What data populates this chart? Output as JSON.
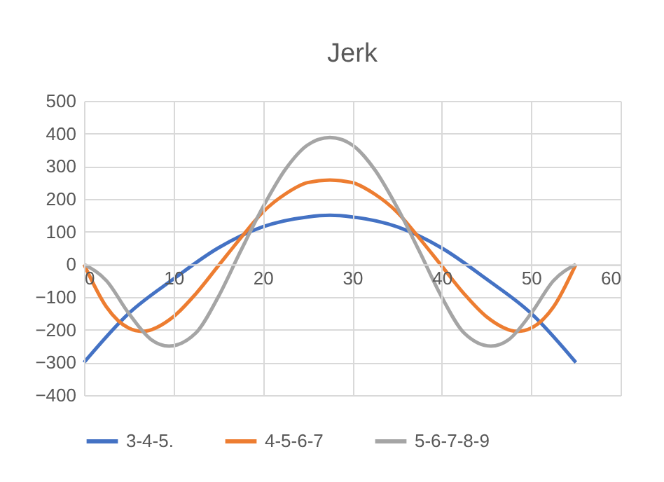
{
  "chart_data": {
    "type": "line",
    "title": "Jerk",
    "xlim": [
      0,
      60
    ],
    "xticks": [
      0,
      10,
      20,
      30,
      40,
      50,
      60
    ],
    "ylim": [
      -400,
      500
    ],
    "yticks": [
      -400,
      -300,
      -200,
      -100,
      0,
      100,
      200,
      300,
      400,
      500
    ],
    "grid": true,
    "legend": "bottom",
    "series": [
      {
        "name": "3-4-5.",
        "color": "#4472c4",
        "x": [
          0,
          5,
          10,
          15,
          20,
          25,
          27.5,
          30,
          35,
          40,
          45,
          50,
          55
        ],
        "values": [
          -300,
          -150,
          -45,
          50,
          115,
          145,
          150,
          145,
          115,
          50,
          -45,
          -150,
          -300
        ]
      },
      {
        "name": "4-5-6-7",
        "color": "#ed7d31",
        "x": [
          0,
          2.5,
          5,
          6.5,
          10,
          12.5,
          15,
          17.5,
          20,
          22.5,
          25,
          27.5,
          30,
          32.5,
          35,
          37.5,
          40,
          42.5,
          45,
          48.5,
          50,
          52.5,
          55
        ],
        "values": [
          0,
          -130,
          -195,
          -205,
          -160,
          -90,
          -5,
          80,
          160,
          215,
          250,
          258,
          250,
          215,
          160,
          80,
          -5,
          -90,
          -160,
          -205,
          -195,
          -130,
          0
        ]
      },
      {
        "name": "5-6-7-8-9",
        "color": "#a5a5a5",
        "x": [
          0,
          2.5,
          5,
          7.5,
          9.5,
          12.5,
          15,
          17.5,
          20,
          22.5,
          25,
          27.5,
          30,
          32.5,
          35,
          37.5,
          40,
          42.5,
          45.5,
          47.5,
          50,
          52.5,
          55
        ],
        "values": [
          0,
          -50,
          -150,
          -230,
          -250,
          -210,
          -100,
          40,
          175,
          290,
          365,
          388,
          365,
          290,
          175,
          40,
          -100,
          -210,
          -250,
          -230,
          -150,
          -50,
          0
        ]
      }
    ]
  }
}
